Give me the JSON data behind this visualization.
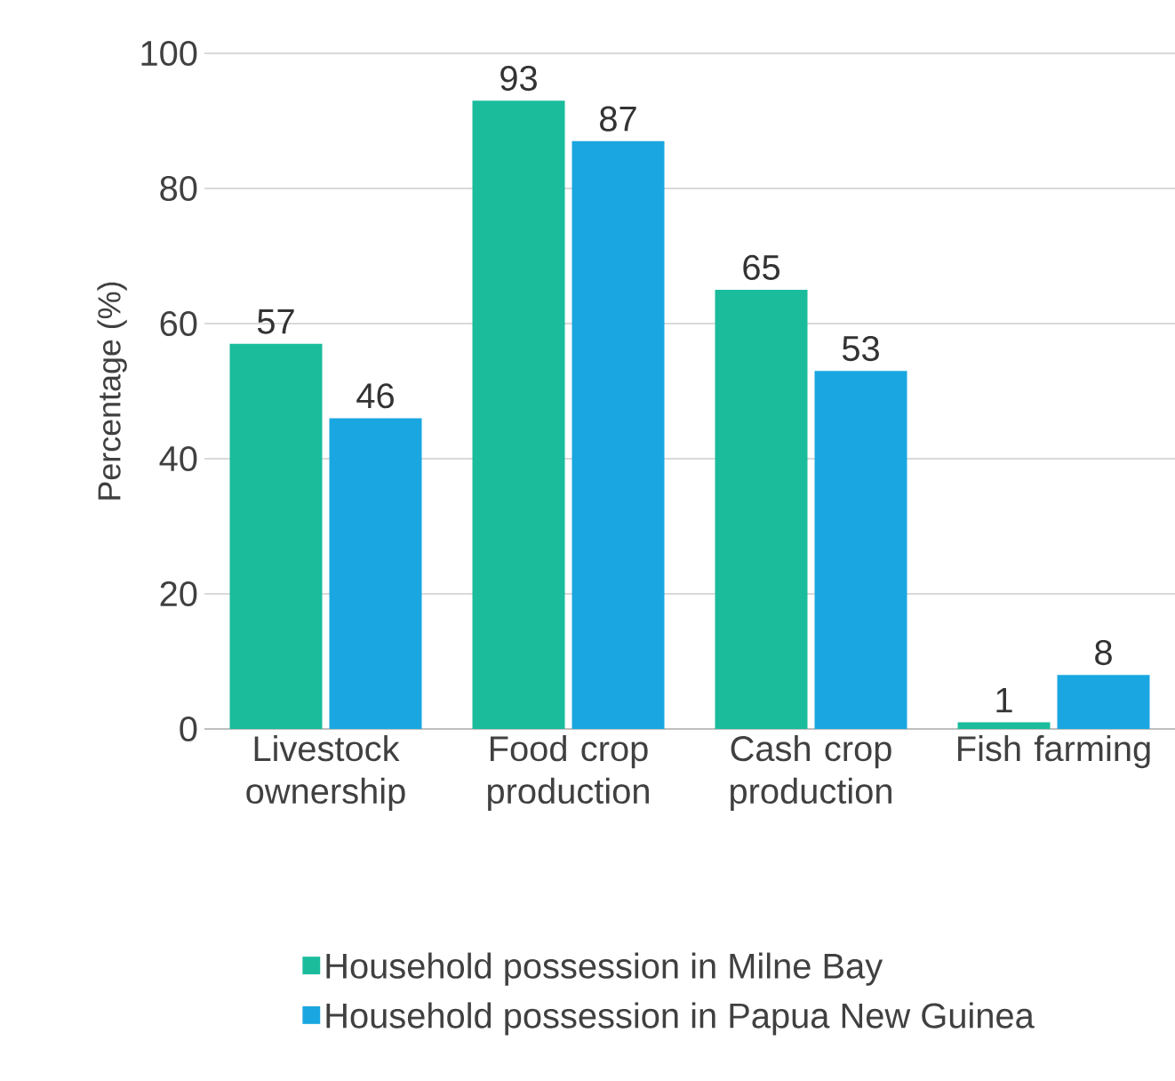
{
  "chart_data": {
    "type": "bar",
    "ylabel": "Percentage (%)",
    "categories": [
      "Livestock ownership",
      "Food crop production",
      "Cash crop production",
      "Fish farming"
    ],
    "series": [
      {
        "name": "Household possession in Milne Bay",
        "color": "#1abc9c",
        "values": [
          57,
          93,
          65,
          1
        ]
      },
      {
        "name": "Household possession in Papua New Guinea",
        "color": "#1aa7e1",
        "values": [
          46,
          87,
          53,
          8
        ]
      }
    ],
    "ylim": [
      0,
      100
    ],
    "yticks": [
      0,
      20,
      40,
      60,
      80,
      100
    ],
    "grid": "y",
    "legend": "bottom",
    "data_labels": true
  }
}
